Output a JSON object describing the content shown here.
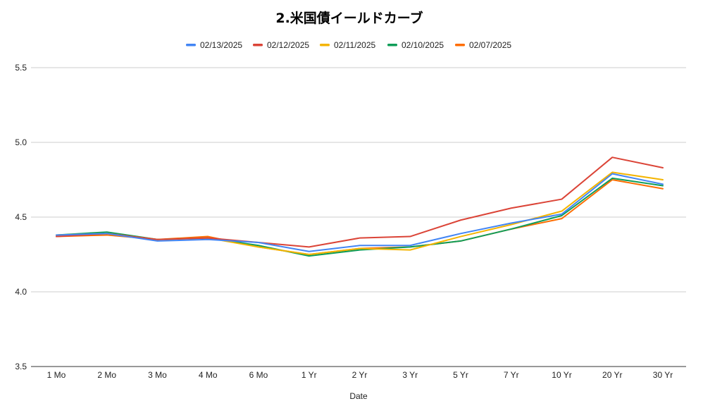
{
  "chart_data": {
    "type": "line",
    "title": "2.米国債イールドカーブ",
    "xlabel": "Date",
    "ylabel": "",
    "ylim": [
      3.5,
      5.5
    ],
    "yticks": [
      "3.5",
      "4.0",
      "4.5",
      "5.0",
      "5.5"
    ],
    "grid": true,
    "legend_position": "top",
    "categories": [
      "1 Mo",
      "2 Mo",
      "3 Mo",
      "4 Mo",
      "6 Mo",
      "1 Yr",
      "2 Yr",
      "3 Yr",
      "5 Yr",
      "7 Yr",
      "10 Yr",
      "20 Yr",
      "30 Yr"
    ],
    "series": [
      {
        "name": "02/13/2025",
        "color": "#4285f4",
        "values": [
          4.38,
          4.39,
          4.34,
          4.35,
          4.33,
          4.27,
          4.31,
          4.31,
          4.39,
          4.46,
          4.52,
          4.79,
          4.72
        ]
      },
      {
        "name": "02/12/2025",
        "color": "#db4437",
        "values": [
          4.37,
          4.39,
          4.35,
          4.36,
          4.33,
          4.3,
          4.36,
          4.37,
          4.48,
          4.56,
          4.62,
          4.9,
          4.83
        ]
      },
      {
        "name": "02/11/2025",
        "color": "#f4b400",
        "values": [
          4.38,
          4.39,
          4.35,
          4.36,
          4.3,
          4.25,
          4.29,
          4.28,
          4.37,
          4.45,
          4.54,
          4.8,
          4.75
        ]
      },
      {
        "name": "02/10/2025",
        "color": "#0f9d58",
        "values": [
          4.38,
          4.4,
          4.35,
          4.36,
          4.31,
          4.24,
          4.28,
          4.3,
          4.34,
          4.42,
          4.51,
          4.76,
          4.71
        ]
      },
      {
        "name": "02/07/2025",
        "color": "#ff6d01",
        "values": [
          4.37,
          4.38,
          4.35,
          4.37,
          4.3,
          4.25,
          4.29,
          4.3,
          4.34,
          4.42,
          4.49,
          4.75,
          4.69
        ]
      }
    ]
  }
}
